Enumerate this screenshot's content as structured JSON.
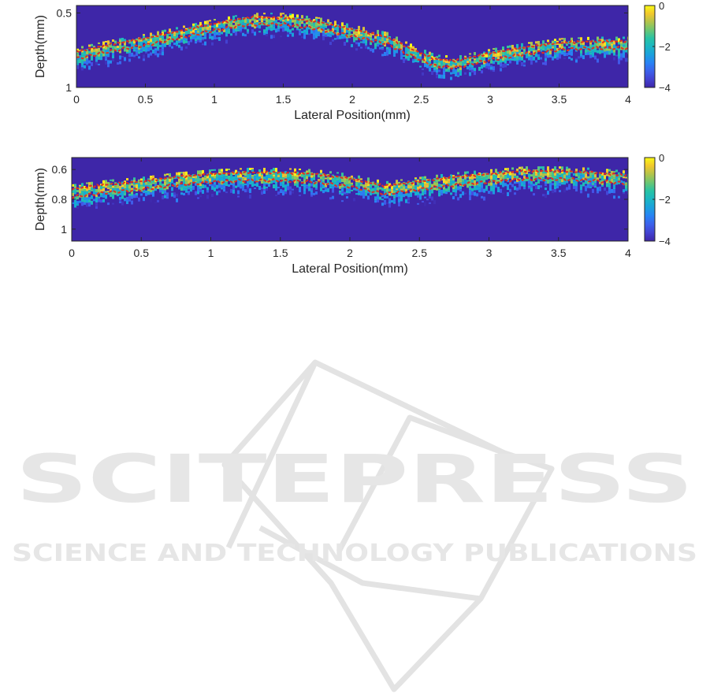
{
  "chart_data": [
    {
      "type": "heatmap",
      "title": "",
      "xlabel": "Lateral Position(mm)",
      "ylabel": "Depth(mm)",
      "xlim": [
        0,
        4
      ],
      "ylim": [
        0.45,
        1.0
      ],
      "y_reversed": true,
      "xticks": [
        0,
        0.5,
        1,
        1.5,
        2,
        2.5,
        3,
        3.5,
        4
      ],
      "xtick_labels": [
        "0",
        "0.5",
        "1",
        "1.5",
        "2",
        "2.5",
        "3",
        "3.5",
        "4"
      ],
      "yticks": [
        0.5,
        1.0
      ],
      "ytick_labels": [
        "0.5",
        "1"
      ],
      "colorbar": {
        "min": -4,
        "max": 0,
        "ticks": [
          0,
          -2,
          -4
        ],
        "tick_labels": [
          "0",
          "−2",
          "−4"
        ],
        "colormap": "parula"
      },
      "background_color": "#3e26a8",
      "surface_depth": {
        "x": [
          0,
          0.25,
          0.5,
          0.75,
          1.0,
          1.25,
          1.5,
          1.75,
          2.0,
          2.25,
          2.4,
          2.6,
          2.75,
          3.0,
          3.25,
          3.5,
          3.75,
          4.0
        ],
        "depth": [
          0.75,
          0.7,
          0.66,
          0.61,
          0.56,
          0.52,
          0.52,
          0.55,
          0.6,
          0.65,
          0.72,
          0.8,
          0.81,
          0.76,
          0.72,
          0.69,
          0.68,
          0.68
        ]
      },
      "layer_thickness": 0.07,
      "boundary_line_color": "#e03020"
    },
    {
      "type": "heatmap",
      "title": "",
      "xlabel": "Lateral Position(mm)",
      "ylabel": "Depth(mm)",
      "xlim": [
        0,
        4
      ],
      "ylim": [
        0.52,
        1.08
      ],
      "y_reversed": true,
      "xticks": [
        0,
        0.5,
        1,
        1.5,
        2,
        2.5,
        3,
        3.5,
        4
      ],
      "xtick_labels": [
        "0",
        "0.5",
        "1",
        "1.5",
        "2",
        "2.5",
        "3",
        "3.5",
        "4"
      ],
      "yticks": [
        0.6,
        0.8,
        1.0
      ],
      "ytick_labels": [
        "0.6",
        "0.8",
        "1"
      ],
      "colorbar": {
        "min": -4,
        "max": 0,
        "ticks": [
          0,
          -2,
          -4
        ],
        "tick_labels": [
          "0",
          "−2",
          "−4"
        ],
        "colormap": "parula"
      },
      "background_color": "#3e26a8",
      "surface_depth": {
        "x": [
          0,
          0.25,
          0.5,
          0.75,
          1.0,
          1.25,
          1.5,
          1.75,
          2.0,
          2.25,
          2.5,
          2.75,
          3.0,
          3.25,
          3.5,
          3.75,
          4.0
        ],
        "depth": [
          0.72,
          0.69,
          0.67,
          0.64,
          0.62,
          0.61,
          0.61,
          0.62,
          0.65,
          0.7,
          0.67,
          0.64,
          0.62,
          0.6,
          0.6,
          0.61,
          0.63
        ]
      },
      "layer_thickness": 0.08,
      "boundary_line_color": "#e03020"
    }
  ],
  "watermark": {
    "main_text": "SCITEPRESS",
    "sub_text": "SCIENCE AND TECHNOLOGY PUBLICATIONS",
    "color": "#e6e6e6"
  }
}
